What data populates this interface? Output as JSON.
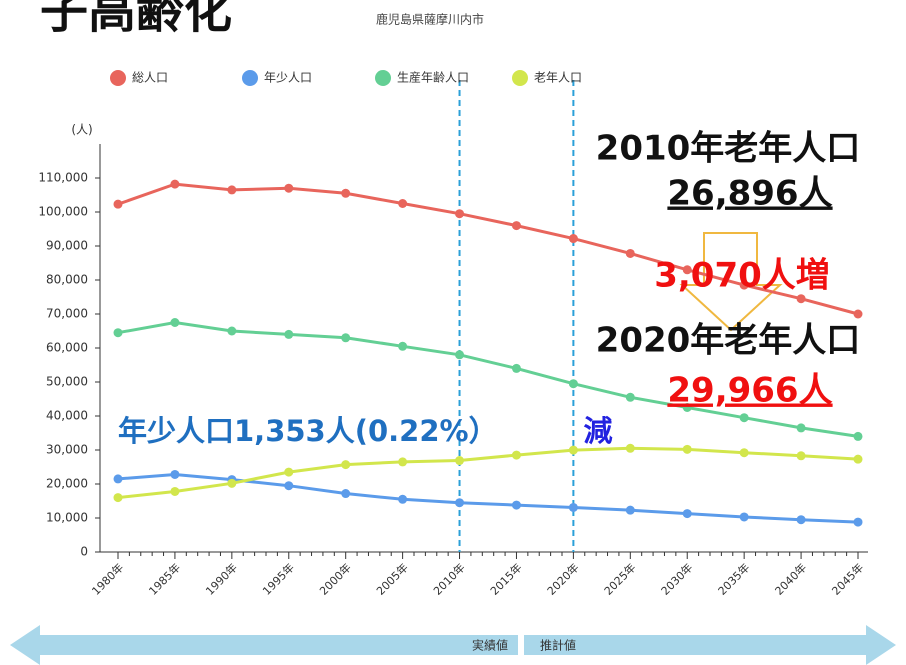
{
  "chart_data": {
    "type": "line",
    "heading": "子高齢化",
    "title": "鹿児島県薩摩川内市",
    "y_label": "(人)",
    "categories": [
      "1980年",
      "1985年",
      "1990年",
      "1995年",
      "2000年",
      "2005年",
      "2010年",
      "2015年",
      "2020年",
      "2025年",
      "2030年",
      "2035年",
      "2040年",
      "2045年"
    ],
    "series": [
      {
        "name": "総人口",
        "color": "#e8655c",
        "values": [
          102300,
          108200,
          106500,
          107000,
          105500,
          102500,
          99500,
          96000,
          92200,
          87800,
          83000,
          78500,
          74500,
          70000
        ]
      },
      {
        "name": "年少人口",
        "color": "#5b9bea",
        "values": [
          21500,
          22800,
          21300,
          19500,
          17200,
          15500,
          14500,
          13800,
          13100,
          12300,
          11300,
          10300,
          9500,
          8800
        ]
      },
      {
        "name": "生産年齢人口",
        "color": "#63cf94",
        "values": [
          64500,
          67500,
          65000,
          64000,
          63000,
          60500,
          58000,
          54000,
          49500,
          45500,
          42500,
          39500,
          36500,
          34000
        ]
      },
      {
        "name": "老年人口",
        "color": "#d2e64c",
        "values": [
          16000,
          17800,
          20200,
          23500,
          25700,
          26500,
          26896,
          28500,
          29966,
          30500,
          30200,
          29200,
          28300,
          27300
        ]
      }
    ],
    "ylim": [
      0,
      120000
    ],
    "yticks": [
      0,
      {
        "value": 10000,
        "label": "10,000"
      },
      {
        "value": 20000,
        "label": "20,000"
      },
      {
        "value": 30000,
        "label": "30,000"
      },
      {
        "value": 40000,
        "label": "40,000"
      },
      {
        "value": 50000,
        "label": "50,000"
      },
      {
        "value": 60000,
        "label": "60,000"
      },
      {
        "value": 70000,
        "label": "70,000"
      },
      {
        "value": 80000,
        "label": "80,000"
      },
      {
        "value": 90000,
        "label": "90,000"
      },
      {
        "value": 100000,
        "label": "100,000"
      },
      {
        "value": 110000,
        "label": "110,000"
      }
    ],
    "dashed_lines": [
      6,
      8
    ],
    "annotations": [
      "2010年老年人口",
      "26,896人",
      "3,070人増",
      "2020年老年人口",
      "29,966人",
      "年少人口1,353人(0.22%）",
      "減"
    ],
    "period_labels": [
      "実績値",
      "推計値"
    ]
  }
}
